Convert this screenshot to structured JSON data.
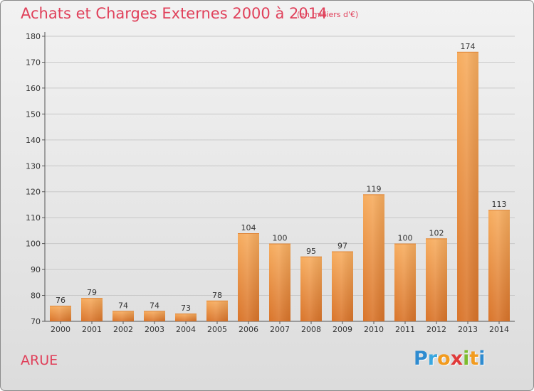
{
  "header": {
    "title": "Achats et Charges Externes 2000 à 2014",
    "unit": "(en milliers d'€)"
  },
  "footer": {
    "commune": "ARUE",
    "logo_letters": [
      "P",
      "r",
      "o",
      "x",
      "i",
      "t",
      "i"
    ],
    "logo_colors": [
      "#2e8bd0",
      "#3aa7e0",
      "#f29b1f",
      "#e03a3a",
      "#7cbc2c",
      "#f29b1f",
      "#2e8bd0"
    ]
  },
  "colors": {
    "title": "#e0405a",
    "bar_light": "#f6a85a",
    "bar_dark": "#d9742a",
    "grid": "#c8c8c8"
  },
  "chart_data": {
    "type": "bar",
    "title": "Achats et Charges Externes 2000 à 2014",
    "subtitle": "(en milliers d'€)",
    "xlabel": "",
    "ylabel": "",
    "categories": [
      "2000",
      "2001",
      "2002",
      "2003",
      "2004",
      "2005",
      "2006",
      "2007",
      "2008",
      "2009",
      "2010",
      "2011",
      "2012",
      "2013",
      "2014"
    ],
    "values": [
      76,
      79,
      74,
      74,
      73,
      78,
      104,
      100,
      95,
      97,
      119,
      100,
      102,
      174,
      113
    ],
    "ylim": [
      70,
      180
    ],
    "yticks": [
      70,
      80,
      90,
      100,
      110,
      120,
      130,
      140,
      150,
      160,
      170,
      180
    ],
    "grid": true,
    "legend": "none"
  }
}
